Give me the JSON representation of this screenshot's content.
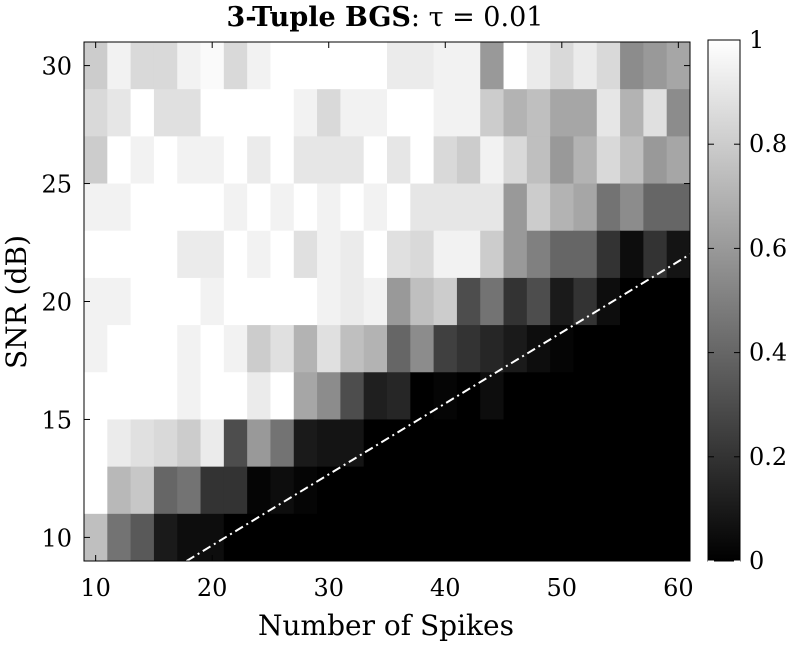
{
  "chart_data": {
    "type": "heatmap",
    "title": {
      "bold": "3-Tuple BGS",
      "rest": ": τ = 0.01"
    },
    "xlabel": "Number of Spikes",
    "ylabel": "SNR (dB)",
    "xlim": [
      9,
      61
    ],
    "ylim": [
      9,
      31
    ],
    "x_ticks": [
      10,
      20,
      30,
      40,
      50,
      60
    ],
    "y_ticks": [
      10,
      15,
      20,
      25,
      30
    ],
    "colorbar": {
      "min": 0,
      "max": 1,
      "ticks": [
        "0",
        "0.2",
        "0.4",
        "0.6",
        "0.8",
        "1"
      ]
    },
    "cell_width": 2,
    "cell_height": 2,
    "x_centers": [
      10,
      12,
      14,
      16,
      18,
      20,
      22,
      24,
      26,
      28,
      30,
      32,
      34,
      36,
      38,
      40,
      42,
      44,
      46,
      48,
      50,
      52,
      54,
      56,
      58,
      60
    ],
    "y_centers": [
      30,
      28,
      26,
      24,
      22,
      20,
      18,
      16,
      14,
      12,
      10
    ],
    "z": [
      [
        0.8,
        0.95,
        0.85,
        0.85,
        0.95,
        0.98,
        0.85,
        0.95,
        1.0,
        1.0,
        1.0,
        1.0,
        1.0,
        0.92,
        0.92,
        0.95,
        0.95,
        0.6,
        1.0,
        0.92,
        0.85,
        0.92,
        0.85,
        0.55,
        0.6,
        0.65
      ],
      [
        0.85,
        0.9,
        1.0,
        0.88,
        0.88,
        1.0,
        1.0,
        1.0,
        1.0,
        0.95,
        0.85,
        0.95,
        0.95,
        1.0,
        1.0,
        0.95,
        0.95,
        0.8,
        0.7,
        0.75,
        0.65,
        0.65,
        0.9,
        0.7,
        0.88,
        0.55
      ],
      [
        0.8,
        1.0,
        0.95,
        1.0,
        0.95,
        0.95,
        1.0,
        0.92,
        1.0,
        0.9,
        0.9,
        0.9,
        1.0,
        0.9,
        1.0,
        0.85,
        0.8,
        0.95,
        0.85,
        0.75,
        0.6,
        0.7,
        0.85,
        0.75,
        0.6,
        0.65
      ],
      [
        0.95,
        0.95,
        1.0,
        1.0,
        1.0,
        1.0,
        0.95,
        1.0,
        0.95,
        1.0,
        0.95,
        1.0,
        0.95,
        1.0,
        0.9,
        0.9,
        0.9,
        0.9,
        0.6,
        0.8,
        0.7,
        0.65,
        0.45,
        0.55,
        0.4,
        0.4
      ],
      [
        1.0,
        1.0,
        1.0,
        1.0,
        0.92,
        0.92,
        1.0,
        0.95,
        1.0,
        0.88,
        0.95,
        0.92,
        1.0,
        0.88,
        0.85,
        0.95,
        0.95,
        0.8,
        0.6,
        0.5,
        0.4,
        0.4,
        0.2,
        0.05,
        0.2,
        0.08
      ],
      [
        0.95,
        0.95,
        1.0,
        1.0,
        1.0,
        0.95,
        1.0,
        1.0,
        1.0,
        1.0,
        0.95,
        0.92,
        0.95,
        0.6,
        0.75,
        0.8,
        0.3,
        0.45,
        0.2,
        0.3,
        0.1,
        0.2,
        0.05,
        0.0,
        0.0,
        0.0
      ],
      [
        0.95,
        1.0,
        1.0,
        1.0,
        0.95,
        1.0,
        0.95,
        0.8,
        0.88,
        0.7,
        0.88,
        0.75,
        0.7,
        0.4,
        0.55,
        0.25,
        0.2,
        0.15,
        0.1,
        0.05,
        0.02,
        0.0,
        0.0,
        0.0,
        0.0,
        0.0
      ],
      [
        1.0,
        1.0,
        1.0,
        1.0,
        0.95,
        1.0,
        1.0,
        0.92,
        1.0,
        0.65,
        0.55,
        0.3,
        0.12,
        0.15,
        0.0,
        0.02,
        0.0,
        0.05,
        0.0,
        0.0,
        0.0,
        0.0,
        0.0,
        0.0,
        0.0,
        0.0
      ],
      [
        1.0,
        0.92,
        0.88,
        0.85,
        0.8,
        0.92,
        0.3,
        0.6,
        0.45,
        0.1,
        0.08,
        0.08,
        0.0,
        0.0,
        0.0,
        0.0,
        0.0,
        0.0,
        0.0,
        0.0,
        0.0,
        0.0,
        0.0,
        0.0,
        0.0,
        0.0
      ],
      [
        1.0,
        0.72,
        0.78,
        0.4,
        0.45,
        0.2,
        0.2,
        0.02,
        0.05,
        0.02,
        0.0,
        0.0,
        0.0,
        0.0,
        0.0,
        0.0,
        0.0,
        0.0,
        0.0,
        0.0,
        0.0,
        0.0,
        0.0,
        0.0,
        0.0,
        0.0
      ],
      [
        0.75,
        0.45,
        0.35,
        0.1,
        0.05,
        0.05,
        0.0,
        0.0,
        0.0,
        0.0,
        0.0,
        0.0,
        0.0,
        0.0,
        0.0,
        0.0,
        0.0,
        0.0,
        0.0,
        0.0,
        0.0,
        0.0,
        0.0,
        0.0,
        0.0,
        0.0
      ]
    ],
    "threshold_line": {
      "style": "dash-dot",
      "color": "#ffffff",
      "from": [
        17.8,
        9
      ],
      "to": [
        61,
        22
      ]
    },
    "grid": false,
    "legend": "none"
  }
}
